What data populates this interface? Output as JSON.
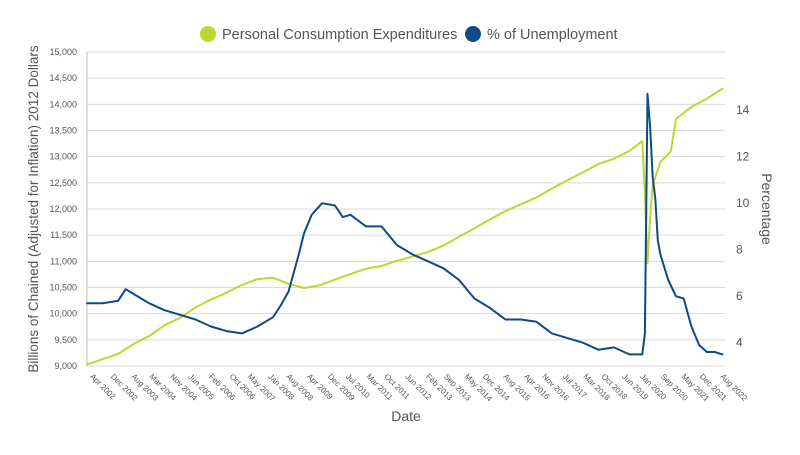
{
  "chart_data": {
    "type": "line",
    "xlabel": "Date",
    "ylabel_left": "Billions of Chained (Adjusted for Inflation) 2012 Dollars",
    "ylabel_right": "Percentage",
    "legend_position": "top-center",
    "grid": true,
    "x_range": [
      "2002-03",
      "2022-10"
    ],
    "x_ticks": [
      {
        "label": "Apr 2002",
        "date": "2002-04"
      },
      {
        "label": "Dec 2002",
        "date": "2002-12"
      },
      {
        "label": "Aug 2003",
        "date": "2003-08"
      },
      {
        "label": "Mar 2004",
        "date": "2004-03"
      },
      {
        "label": "Nov 2004",
        "date": "2004-11"
      },
      {
        "label": "Jun 2005",
        "date": "2005-06"
      },
      {
        "label": "Feb 2006",
        "date": "2006-02"
      },
      {
        "label": "Oct 2006",
        "date": "2006-10"
      },
      {
        "label": "May 2007",
        "date": "2007-05"
      },
      {
        "label": "Jan 2008",
        "date": "2008-01"
      },
      {
        "label": "Aug 2008",
        "date": "2008-08"
      },
      {
        "label": "Apr 2009",
        "date": "2009-04"
      },
      {
        "label": "Dec 2009",
        "date": "2009-12"
      },
      {
        "label": "Jul 2010",
        "date": "2010-07"
      },
      {
        "label": "Mar 2011",
        "date": "2011-03"
      },
      {
        "label": "Oct 2011",
        "date": "2011-10"
      },
      {
        "label": "Jun 2012",
        "date": "2012-06"
      },
      {
        "label": "Feb 2013",
        "date": "2013-02"
      },
      {
        "label": "Sep 2013",
        "date": "2013-09"
      },
      {
        "label": "May 2014",
        "date": "2014-05"
      },
      {
        "label": "Dec 2014",
        "date": "2014-12"
      },
      {
        "label": "Aug 2015",
        "date": "2015-08"
      },
      {
        "label": "Apr 2016",
        "date": "2016-04"
      },
      {
        "label": "Nov 2016",
        "date": "2016-11"
      },
      {
        "label": "Jul 2017",
        "date": "2017-07"
      },
      {
        "label": "Mar 2018",
        "date": "2018-03"
      },
      {
        "label": "Oct 2018",
        "date": "2018-10"
      },
      {
        "label": "Jun 2019",
        "date": "2019-06"
      },
      {
        "label": "Jan 2020",
        "date": "2020-01"
      },
      {
        "label": "Sep 2020",
        "date": "2020-09"
      },
      {
        "label": "May 2021",
        "date": "2021-05"
      },
      {
        "label": "Dec 2021",
        "date": "2021-12"
      },
      {
        "label": "Aug 2022",
        "date": "2022-08"
      }
    ],
    "y_left": {
      "range": [
        9000,
        15000
      ],
      "ticks": [
        "9,000",
        "9,500",
        "10,000",
        "10,500",
        "11,000",
        "11,500",
        "12,000",
        "12,500",
        "13,000",
        "13,500",
        "14,000",
        "14,500",
        "15,000"
      ]
    },
    "y_right": {
      "range": [
        3.0,
        16.5
      ],
      "ticks": [
        "4",
        "6",
        "8",
        "10",
        "12",
        "14"
      ]
    },
    "series": [
      {
        "name": "Personal Consumption Expenditures",
        "color": "#c0d631",
        "axis": "left",
        "points": [
          [
            "2002-03",
            9030
          ],
          [
            "2002-09",
            9130
          ],
          [
            "2003-03",
            9230
          ],
          [
            "2003-09",
            9420
          ],
          [
            "2004-03",
            9570
          ],
          [
            "2004-09",
            9780
          ],
          [
            "2005-03",
            9920
          ],
          [
            "2005-09",
            10120
          ],
          [
            "2006-03",
            10270
          ],
          [
            "2006-09",
            10400
          ],
          [
            "2007-03",
            10550
          ],
          [
            "2007-09",
            10660
          ],
          [
            "2008-03",
            10690
          ],
          [
            "2008-09",
            10570
          ],
          [
            "2009-03",
            10490
          ],
          [
            "2009-09",
            10540
          ],
          [
            "2010-03",
            10650
          ],
          [
            "2010-09",
            10760
          ],
          [
            "2011-03",
            10860
          ],
          [
            "2011-09",
            10910
          ],
          [
            "2012-03",
            11010
          ],
          [
            "2012-09",
            11090
          ],
          [
            "2013-03",
            11180
          ],
          [
            "2013-09",
            11300
          ],
          [
            "2014-03",
            11470
          ],
          [
            "2014-09",
            11630
          ],
          [
            "2015-03",
            11800
          ],
          [
            "2015-09",
            11960
          ],
          [
            "2016-03",
            12090
          ],
          [
            "2016-09",
            12220
          ],
          [
            "2017-03",
            12390
          ],
          [
            "2017-09",
            12550
          ],
          [
            "2018-03",
            12700
          ],
          [
            "2018-09",
            12860
          ],
          [
            "2019-03",
            12960
          ],
          [
            "2019-09",
            13110
          ],
          [
            "2020-02",
            13300
          ],
          [
            "2020-03",
            12300
          ],
          [
            "2020-04",
            10960
          ],
          [
            "2020-05",
            11850
          ],
          [
            "2020-06",
            12460
          ],
          [
            "2020-09",
            12900
          ],
          [
            "2021-01",
            13100
          ],
          [
            "2021-03",
            13720
          ],
          [
            "2021-09",
            13950
          ],
          [
            "2022-03",
            14110
          ],
          [
            "2022-09",
            14300
          ]
        ]
      },
      {
        "name": "% of Unemployment",
        "color": "#0e4a86",
        "axis": "right",
        "points": [
          [
            "2002-03",
            5.7
          ],
          [
            "2002-09",
            5.7
          ],
          [
            "2003-03",
            5.8
          ],
          [
            "2003-06",
            6.3
          ],
          [
            "2003-09",
            6.1
          ],
          [
            "2004-03",
            5.7
          ],
          [
            "2004-09",
            5.4
          ],
          [
            "2005-03",
            5.2
          ],
          [
            "2005-09",
            5.0
          ],
          [
            "2006-03",
            4.7
          ],
          [
            "2006-09",
            4.5
          ],
          [
            "2007-03",
            4.4
          ],
          [
            "2007-09",
            4.7
          ],
          [
            "2008-03",
            5.1
          ],
          [
            "2008-06",
            5.6
          ],
          [
            "2008-09",
            6.2
          ],
          [
            "2009-01",
            7.8
          ],
          [
            "2009-03",
            8.7
          ],
          [
            "2009-06",
            9.5
          ],
          [
            "2009-10",
            10.0
          ],
          [
            "2010-03",
            9.9
          ],
          [
            "2010-06",
            9.4
          ],
          [
            "2010-09",
            9.5
          ],
          [
            "2011-03",
            9.0
          ],
          [
            "2011-09",
            9.0
          ],
          [
            "2012-03",
            8.2
          ],
          [
            "2012-09",
            7.8
          ],
          [
            "2013-03",
            7.5
          ],
          [
            "2013-09",
            7.2
          ],
          [
            "2014-03",
            6.7
          ],
          [
            "2014-09",
            5.9
          ],
          [
            "2015-03",
            5.5
          ],
          [
            "2015-09",
            5.0
          ],
          [
            "2016-03",
            5.0
          ],
          [
            "2016-09",
            4.9
          ],
          [
            "2017-03",
            4.4
          ],
          [
            "2017-09",
            4.2
          ],
          [
            "2018-03",
            4.0
          ],
          [
            "2018-09",
            3.7
          ],
          [
            "2019-03",
            3.8
          ],
          [
            "2019-09",
            3.5
          ],
          [
            "2020-02",
            3.5
          ],
          [
            "2020-03",
            4.4
          ],
          [
            "2020-04",
            14.7
          ],
          [
            "2020-05",
            13.3
          ],
          [
            "2020-06",
            11.1
          ],
          [
            "2020-07",
            10.2
          ],
          [
            "2020-08",
            8.4
          ],
          [
            "2020-09",
            7.8
          ],
          [
            "2020-12",
            6.7
          ],
          [
            "2021-03",
            6.0
          ],
          [
            "2021-06",
            5.9
          ],
          [
            "2021-09",
            4.7
          ],
          [
            "2021-12",
            3.9
          ],
          [
            "2022-03",
            3.6
          ],
          [
            "2022-06",
            3.6
          ],
          [
            "2022-09",
            3.5
          ]
        ]
      }
    ]
  }
}
